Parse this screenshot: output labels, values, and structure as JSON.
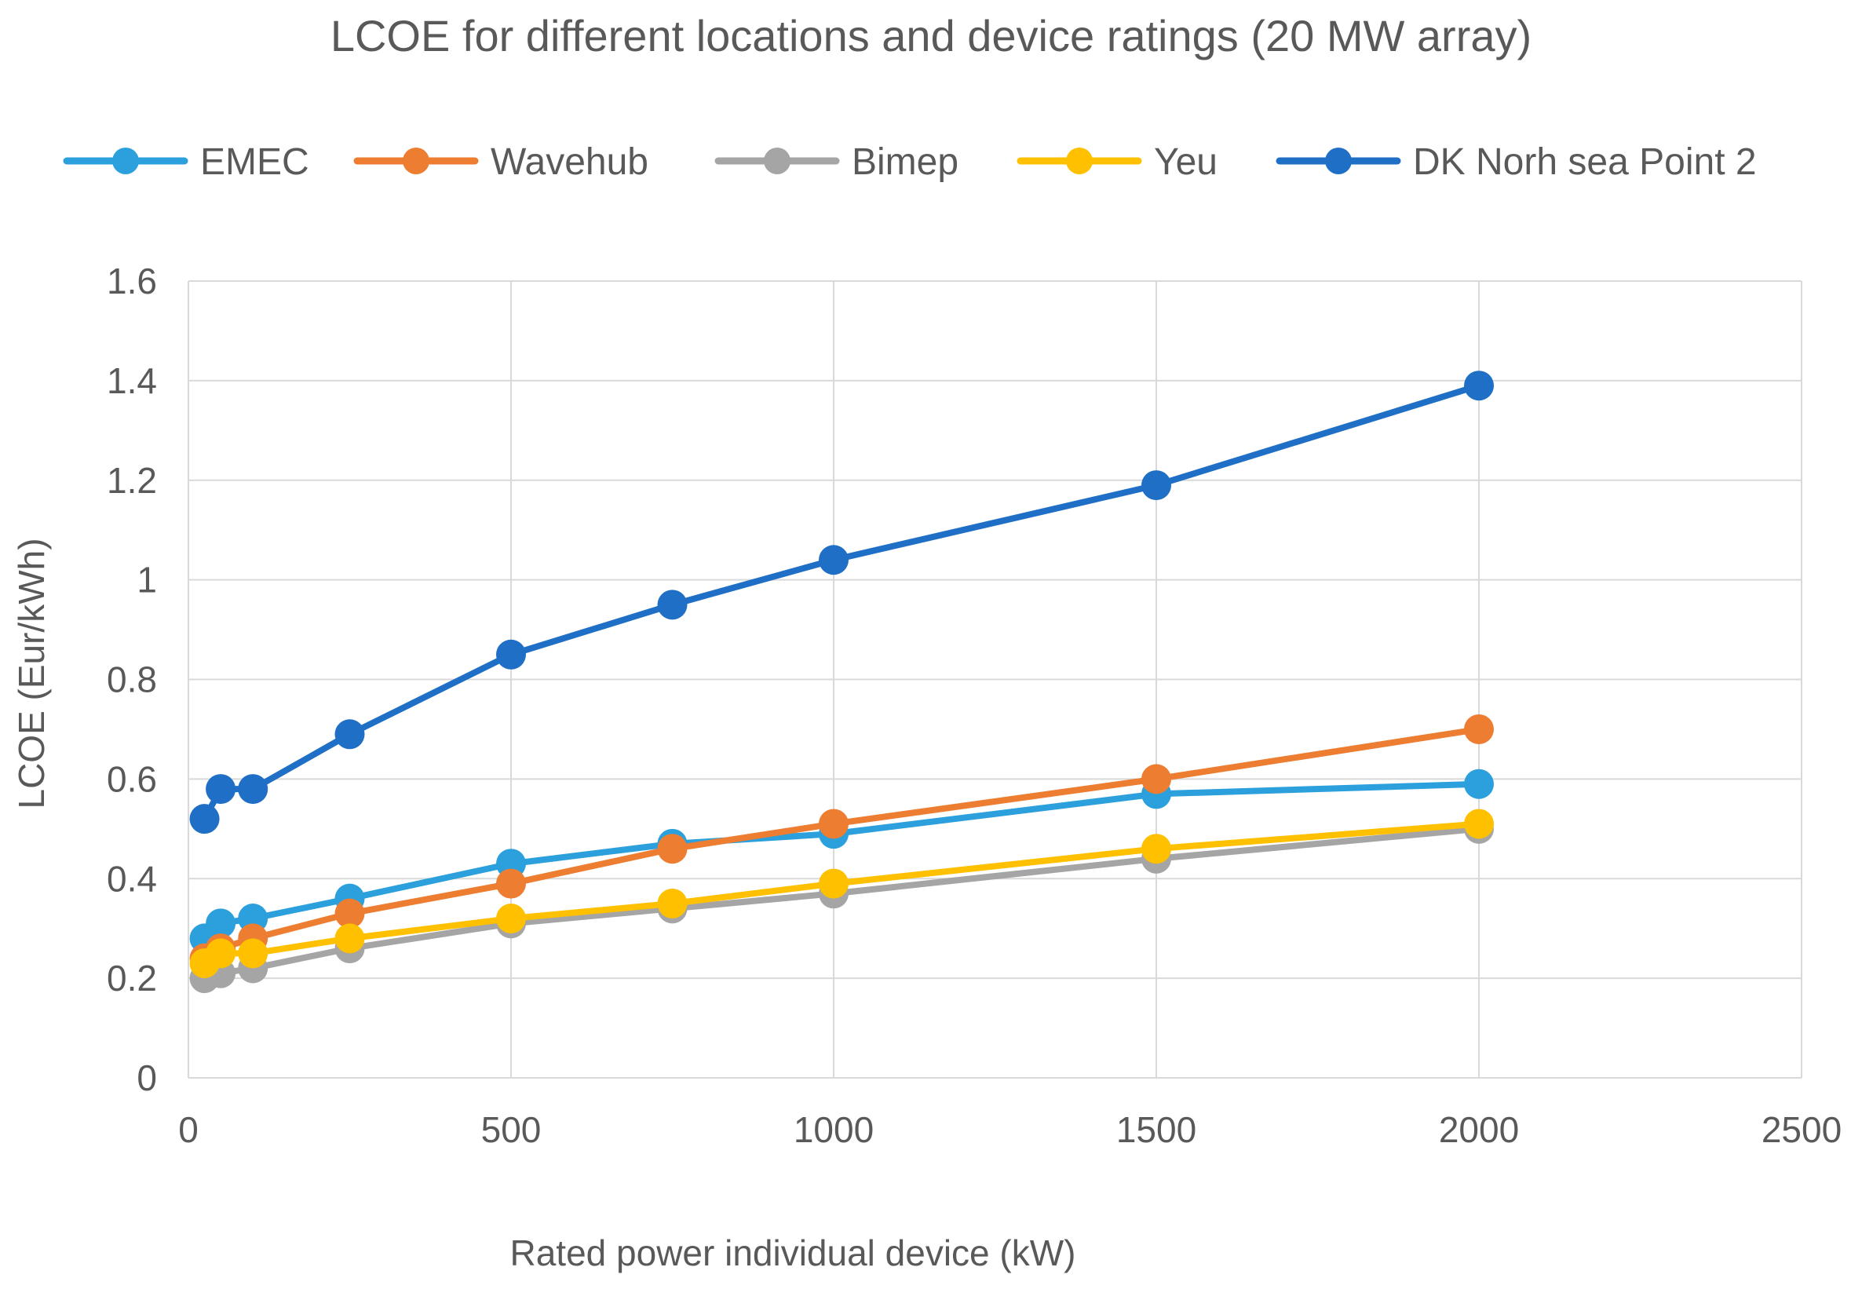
{
  "chart_data": {
    "type": "line",
    "title": "LCOE for different locations and device ratings (20 MW array)",
    "xlabel": "Rated power individual device (kW)",
    "ylabel": "LCOE (Eur/kWh)",
    "xlim": [
      0,
      2500
    ],
    "ylim": [
      0,
      1.6
    ],
    "x_ticks": [
      "0",
      "500",
      "1000",
      "1500",
      "2000",
      "2500"
    ],
    "y_ticks": [
      "0",
      "0.2",
      "0.4",
      "0.6",
      "0.8",
      "1",
      "1.2",
      "1.4",
      "1.6"
    ],
    "x_tick_values": [
      0,
      500,
      1000,
      1500,
      2000,
      2500
    ],
    "y_tick_values": [
      0,
      0.2,
      0.4,
      0.6,
      0.8,
      1.0,
      1.2,
      1.4,
      1.6
    ],
    "grid": true,
    "legend_position": "top",
    "x": [
      25,
      50,
      100,
      250,
      500,
      750,
      1000,
      1500,
      2000
    ],
    "series": [
      {
        "name": "EMEC",
        "color": "#2ca0dc",
        "values": [
          0.28,
          0.31,
          0.32,
          0.36,
          0.43,
          0.47,
          0.49,
          0.57,
          0.59
        ]
      },
      {
        "name": "Wavehub",
        "color": "#ed7d31",
        "values": [
          0.24,
          0.26,
          0.28,
          0.33,
          0.39,
          0.46,
          0.51,
          0.6,
          0.7
        ]
      },
      {
        "name": "Bimep",
        "color": "#a5a5a5",
        "values": [
          0.2,
          0.21,
          0.22,
          0.26,
          0.31,
          0.34,
          0.37,
          0.44,
          0.5
        ]
      },
      {
        "name": "Yeu",
        "color": "#ffc000",
        "values": [
          0.23,
          0.25,
          0.25,
          0.28,
          0.32,
          0.35,
          0.39,
          0.46,
          0.51
        ]
      },
      {
        "name": "DK Norh sea Point 2",
        "color": "#1f6fc6",
        "values": [
          0.52,
          0.58,
          0.58,
          0.69,
          0.85,
          0.95,
          1.04,
          1.19,
          1.39
        ]
      }
    ]
  }
}
